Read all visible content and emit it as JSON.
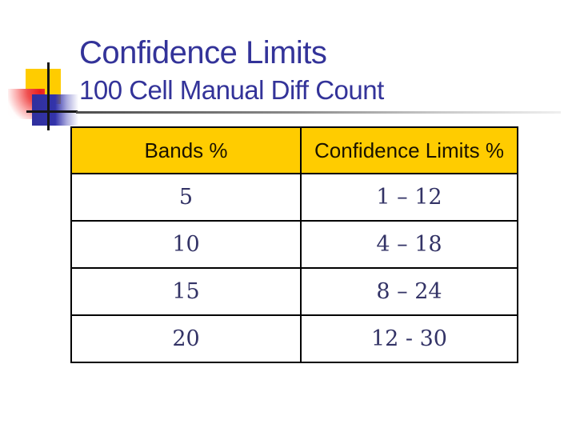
{
  "slide": {
    "title": "Confidence Limits",
    "subtitle": "100 Cell Manual Diff Count"
  },
  "table": {
    "columns": [
      "Bands %",
      "Confidence Limits %"
    ],
    "rows": [
      {
        "band": "5",
        "limits": "1 – 12"
      },
      {
        "band": "10",
        "limits": "4 – 18"
      },
      {
        "band": "15",
        "limits": "8 – 24"
      },
      {
        "band": "20",
        "limits": "12 - 30"
      }
    ]
  },
  "colors": {
    "title_text": "#333399",
    "table_text": "#333366",
    "header_background": "#FFCC00",
    "table_border": "#000000",
    "decor_gold": "#FFCC00",
    "decor_blue": "#3333AA",
    "decor_red": "#E81D1D",
    "rule_gradient_start": "#4D4D4D",
    "rule_gradient_end": "#EFEFEF"
  }
}
